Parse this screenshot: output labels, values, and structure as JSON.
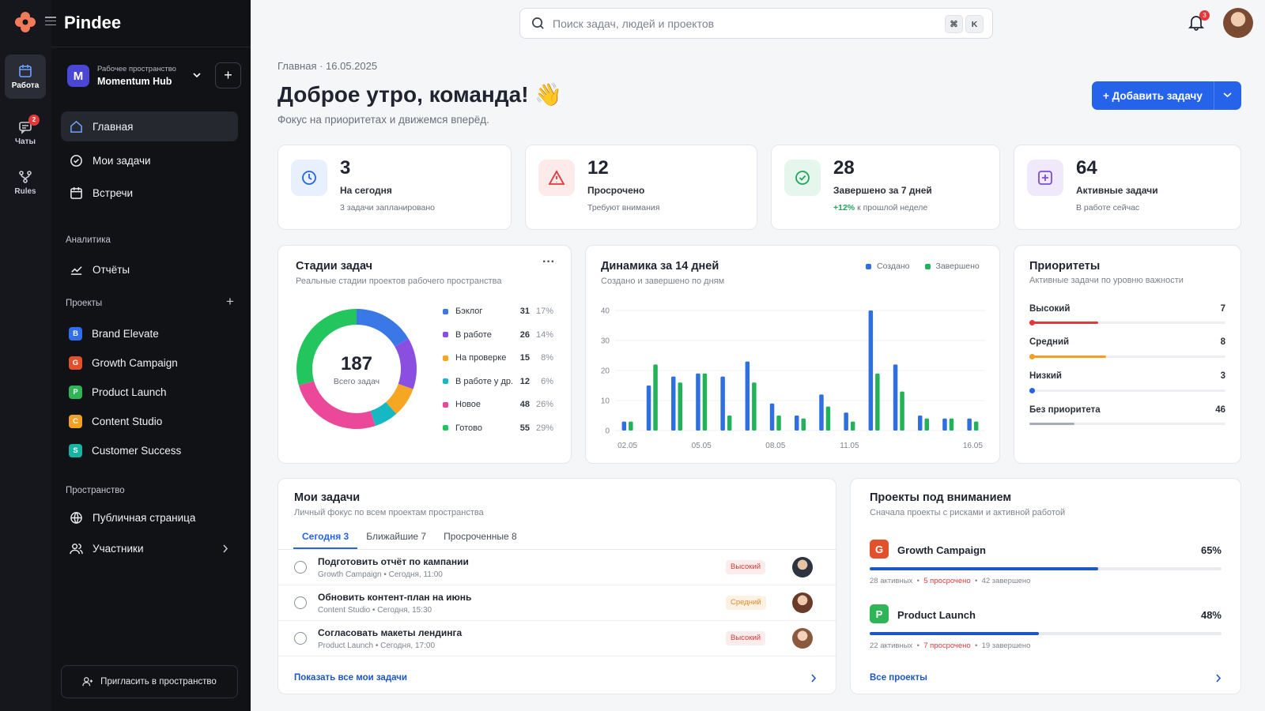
{
  "app": {
    "name": "Pindee"
  },
  "rail": {
    "items": [
      {
        "label": "Работа",
        "icon": "calendar-icon"
      },
      {
        "label": "Чаты",
        "icon": "chat-icon",
        "badge": "2"
      },
      {
        "label": "Rules",
        "icon": "branch-icon"
      }
    ]
  },
  "workspace": {
    "caption": "Рабочее пространство",
    "name": "Momentum Hub",
    "initial": "M",
    "add": "+"
  },
  "nav": {
    "main": [
      {
        "label": "Главная",
        "icon": "home-icon"
      },
      {
        "label": "Мои задачи",
        "icon": "check-circle-icon"
      },
      {
        "label": "Встречи",
        "icon": "calendar-icon"
      }
    ],
    "analytics_title": "Аналитика",
    "analytics": [
      {
        "label": "Отчёты",
        "icon": "chart-line-icon"
      }
    ],
    "projects_title": "Проекты",
    "projects": [
      {
        "label": "Brand Elevate",
        "initial": "B",
        "color": "#2f6fed"
      },
      {
        "label": "Growth Campaign",
        "initial": "G",
        "color": "#e2512b"
      },
      {
        "label": "Product Launch",
        "initial": "P",
        "color": "#2fb457"
      },
      {
        "label": "Content Studio",
        "initial": "C",
        "color": "#f2a024"
      },
      {
        "label": "Customer Success",
        "initial": "S",
        "color": "#17b3a3"
      }
    ],
    "space_title": "Пространство",
    "space": [
      {
        "label": "Публичная страница",
        "icon": "globe-icon"
      },
      {
        "label": "Участники",
        "icon": "users-icon"
      }
    ],
    "invite": "Пригласить в пространство"
  },
  "topbar": {
    "search_placeholder": "Поиск задач, людей и проектов",
    "shortcut": [
      "⌘",
      "K"
    ],
    "notifications": "3"
  },
  "header": {
    "breadcrumb": "Главная · 16.05.2025",
    "greeting": "Доброе утро, команда! 👋",
    "subtitle": "Фокус на приоритетах и движемся вперёд.",
    "add_button": "+ Добавить задачу"
  },
  "stats": [
    {
      "value": "3",
      "label": "На сегодня",
      "sub": "3 задачи запланировано",
      "icon": "clock-icon",
      "color": "#2563eb",
      "bg": "#e8f0fe"
    },
    {
      "value": "12",
      "label": "Просрочено",
      "sub": "Требуют внимания",
      "icon": "warning-icon",
      "color": "#e5383b",
      "bg": "#fdeaea"
    },
    {
      "value": "28",
      "label": "Завершено за 7 дней",
      "sub_accent": "+12%",
      "sub": "к прошлой неделе",
      "icon": "check-circle-icon",
      "color": "#22a55b",
      "bg": "#e5f6ec"
    },
    {
      "value": "64",
      "label": "Активные задачи",
      "sub": "В работе сейчас",
      "icon": "plus-square-icon",
      "color": "#7c4ddb",
      "bg": "#efe9fb"
    }
  ],
  "stages": {
    "title": "Стадии задач",
    "subtitle": "Реальные стадии проектов рабочего пространства",
    "total": "187",
    "total_label": "Всего задач",
    "more": "···"
  },
  "trend": {
    "title": "Динамика за 14 дней",
    "subtitle": "Создано и завершено по дням",
    "legend": [
      "Создано",
      "Завершено"
    ]
  },
  "priorities": {
    "title": "Приоритеты",
    "subtitle": "Активные задачи по уровню важности",
    "items": [
      {
        "label": "Высокий",
        "value": "7",
        "fill": 0.35,
        "color": "#e5383b"
      },
      {
        "label": "Средний",
        "value": "8",
        "fill": 0.39,
        "color": "#f2a024"
      },
      {
        "label": "Низкий",
        "value": "3",
        "fill": 0.03,
        "color": "#2563eb"
      },
      {
        "label": "Без приоритета",
        "value": "46",
        "fill": 0.23,
        "color": "#a7adb7"
      }
    ]
  },
  "chart_data": [
    {
      "type": "pie",
      "title": "Стадии задач",
      "total": 187,
      "categories": [
        "Бэклог",
        "В работе",
        "На проверке",
        "В работе у др.",
        "Новое",
        "Готово"
      ],
      "values": [
        31,
        26,
        15,
        12,
        48,
        55
      ],
      "percents": [
        "17%",
        "14%",
        "8%",
        "6%",
        "26%",
        "29%"
      ],
      "colors": [
        "#3b78e7",
        "#8a4fe0",
        "#f5a623",
        "#17b8c4",
        "#ec4899",
        "#22c55e"
      ]
    },
    {
      "type": "bar",
      "title": "Динамика за 14 дней",
      "x": [
        "02.05",
        "03.05",
        "04.05",
        "05.05",
        "06.05",
        "07.05",
        "08.05",
        "09.05",
        "10.05",
        "11.05",
        "12.05",
        "13.05",
        "14.05",
        "15.05",
        "16.05"
      ],
      "xticks": [
        "02.05",
        "05.05",
        "08.05",
        "11.05",
        "16.05"
      ],
      "series": [
        {
          "name": "Создано",
          "values": [
            3,
            15,
            18,
            19,
            18,
            23,
            9,
            5,
            12,
            6,
            40,
            22,
            5,
            4,
            4
          ],
          "color": "#2f6fe0"
        },
        {
          "name": "Завершено",
          "values": [
            3,
            22,
            16,
            19,
            5,
            16,
            5,
            4,
            8,
            3,
            19,
            13,
            4,
            4,
            3
          ],
          "color": "#22b35a"
        }
      ],
      "ylim": [
        0,
        40
      ],
      "yticks": [
        0,
        10,
        20,
        30,
        40
      ],
      "legend": "top-right",
      "grid": true
    }
  ],
  "my_tasks": {
    "title": "Мои задачи",
    "subtitle": "Личный фокус по всем проектам пространства",
    "tabs": [
      {
        "label": "Сегодня 3"
      },
      {
        "label": "Ближайшие 7"
      },
      {
        "label": "Просроченные 8"
      }
    ],
    "rows": [
      {
        "title": "Подготовить отчёт по кампании",
        "meta": "Growth Campaign • Сегодня, 11:00",
        "priority": "Высокий",
        "level": "high"
      },
      {
        "title": "Обновить контент-план на июнь",
        "meta": "Content Studio • Сегодня, 15:30",
        "priority": "Средний",
        "level": "mid"
      },
      {
        "title": "Согласовать макеты лендинга",
        "meta": "Product Launch • Сегодня, 17:00",
        "priority": "Высокий",
        "level": "high"
      }
    ],
    "footer": "Показать все мои задачи"
  },
  "attention": {
    "title": "Проекты под вниманием",
    "subtitle": "Сначала проекты с рисками и активной работой",
    "items": [
      {
        "initial": "G",
        "name": "Growth Campaign",
        "pct": "65%",
        "progress": 0.65,
        "active": "28 активных",
        "overdue": "5 просрочено",
        "done": "42 завершено",
        "color": "#e2512b"
      },
      {
        "initial": "P",
        "name": "Product Launch",
        "pct": "48%",
        "progress": 0.48,
        "active": "22 активных",
        "overdue": "7 просрочено",
        "done": "19 завершено",
        "color": "#2fb457"
      }
    ],
    "footer": "Все проекты"
  }
}
